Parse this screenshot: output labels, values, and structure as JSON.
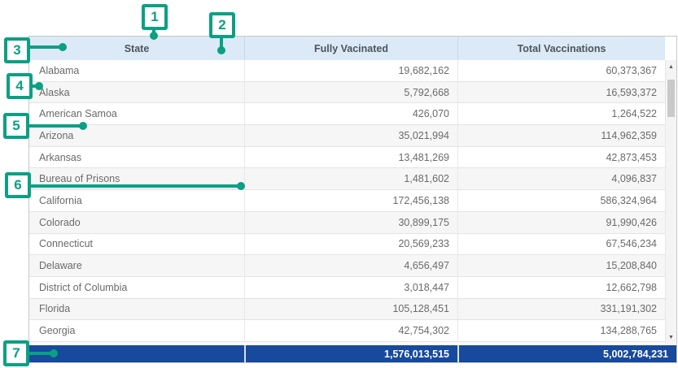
{
  "header": {
    "state": "State",
    "fully": "Fully Vacinated",
    "total": "Total Vaccinations"
  },
  "rows": [
    {
      "state": "Alabama",
      "fully": "19,682,162",
      "total": "60,373,367"
    },
    {
      "state": "Alaska",
      "fully": "5,792,668",
      "total": "16,593,372"
    },
    {
      "state": "American Samoa",
      "fully": "426,070",
      "total": "1,264,522"
    },
    {
      "state": "Arizona",
      "fully": "35,021,994",
      "total": "114,962,359"
    },
    {
      "state": "Arkansas",
      "fully": "13,481,269",
      "total": "42,873,453"
    },
    {
      "state": "Bureau of Prisons",
      "fully": "1,481,602",
      "total": "4,096,837"
    },
    {
      "state": "California",
      "fully": "172,456,138",
      "total": "586,324,964"
    },
    {
      "state": "Colorado",
      "fully": "30,899,175",
      "total": "91,990,426"
    },
    {
      "state": "Connecticut",
      "fully": "20,569,233",
      "total": "67,546,234"
    },
    {
      "state": "Delaware",
      "fully": "4,656,497",
      "total": "15,208,840"
    },
    {
      "state": "District of Columbia",
      "fully": "3,018,447",
      "total": "12,662,798"
    },
    {
      "state": "Florida",
      "fully": "105,128,451",
      "total": "331,191,302"
    },
    {
      "state": "Georgia",
      "fully": "42,754,302",
      "total": "134,288,765"
    }
  ],
  "footer": {
    "fully": "1,576,013,515",
    "total": "5,002,784,231"
  },
  "scrollbar": {
    "up_icon": "▲",
    "down_icon": "▼"
  },
  "callouts": [
    "1",
    "2",
    "3",
    "4",
    "5",
    "6",
    "7"
  ],
  "colors": {
    "callout_green": "#0aa084",
    "header_bg": "#dceaf7",
    "footer_bg": "#17499c",
    "row_alt_bg": "#f6f6f6"
  }
}
